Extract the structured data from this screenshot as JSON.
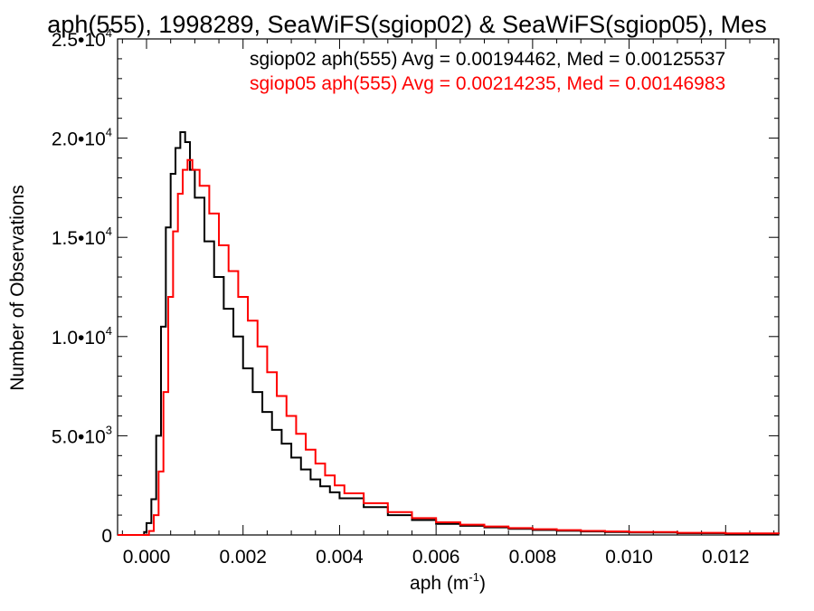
{
  "chart_data": {
    "type": "line",
    "title": "aph(555), 1998289, SeaWiFS(sgiop02) & SeaWiFS(sgiop05), Mes",
    "xlabel": "aph (m",
    "xlabel_sup": "-1",
    "xlabel_close": ")",
    "ylabel": "Number of Observations",
    "xlim": [
      -0.0006,
      0.0131
    ],
    "ylim": [
      0,
      25000
    ],
    "x_ticks": [
      0.0,
      0.002,
      0.004,
      0.006,
      0.008,
      0.01,
      0.012
    ],
    "x_tick_labels": [
      "0.000",
      "0.002",
      "0.004",
      "0.006",
      "0.008",
      "0.010",
      "0.012"
    ],
    "y_ticks": [
      0,
      5000,
      10000,
      15000,
      20000,
      25000
    ],
    "y_tick_labels": [
      {
        "base": "0",
        "exp": ""
      },
      {
        "base": "5.0•10",
        "exp": "3"
      },
      {
        "base": "1.0•10",
        "exp": "4"
      },
      {
        "base": "1.5•10",
        "exp": "4"
      },
      {
        "base": "2.0•10",
        "exp": "4"
      },
      {
        "base": "2.5•10",
        "exp": "4"
      }
    ],
    "grid": false,
    "series": [
      {
        "name": "sgiop02 aph(555) Avg = 0.00194462, Med = 0.00125537",
        "color": "#000000",
        "style": "step",
        "points": [
          [
            -0.0006,
            0
          ],
          [
            -0.0002,
            0
          ],
          [
            -5e-05,
            150
          ],
          [
            0.0,
            600
          ],
          [
            0.0001,
            1800
          ],
          [
            0.0002,
            5000
          ],
          [
            0.0003,
            10500
          ],
          [
            0.0004,
            15500
          ],
          [
            0.0005,
            18200
          ],
          [
            0.0006,
            19500
          ],
          [
            0.0007,
            20300
          ],
          [
            0.0008,
            19800
          ],
          [
            0.0009,
            18400
          ],
          [
            0.001,
            17000
          ],
          [
            0.0012,
            14800
          ],
          [
            0.0014,
            13000
          ],
          [
            0.0016,
            11400
          ],
          [
            0.0018,
            10000
          ],
          [
            0.002,
            8400
          ],
          [
            0.0022,
            7200
          ],
          [
            0.0024,
            6200
          ],
          [
            0.0026,
            5300
          ],
          [
            0.0028,
            4600
          ],
          [
            0.003,
            3900
          ],
          [
            0.0032,
            3300
          ],
          [
            0.0034,
            2800
          ],
          [
            0.0036,
            2450
          ],
          [
            0.0038,
            2150
          ],
          [
            0.004,
            1850
          ],
          [
            0.0045,
            1400
          ],
          [
            0.005,
            1000
          ],
          [
            0.0055,
            750
          ],
          [
            0.006,
            560
          ],
          [
            0.0065,
            460
          ],
          [
            0.007,
            380
          ],
          [
            0.0075,
            310
          ],
          [
            0.008,
            250
          ],
          [
            0.0085,
            210
          ],
          [
            0.009,
            175
          ],
          [
            0.0095,
            150
          ],
          [
            0.01,
            125
          ],
          [
            0.011,
            90
          ],
          [
            0.012,
            65
          ],
          [
            0.0131,
            45
          ]
        ]
      },
      {
        "name": "sgiop05 aph(555) Avg = 0.00214235, Med = 0.00146983",
        "color": "#ff0000",
        "style": "step",
        "points": [
          [
            -0.0006,
            0
          ],
          [
            0.0,
            0
          ],
          [
            5e-05,
            200
          ],
          [
            0.00015,
            1000
          ],
          [
            0.00025,
            3200
          ],
          [
            0.00035,
            7200
          ],
          [
            0.00045,
            12000
          ],
          [
            0.00055,
            15300
          ],
          [
            0.00065,
            17200
          ],
          [
            0.00075,
            18400
          ],
          [
            0.00085,
            18900
          ],
          [
            0.00095,
            18400
          ],
          [
            0.0011,
            17600
          ],
          [
            0.0013,
            16200
          ],
          [
            0.0015,
            14600
          ],
          [
            0.0017,
            13300
          ],
          [
            0.0019,
            12000
          ],
          [
            0.0021,
            10800
          ],
          [
            0.0023,
            9500
          ],
          [
            0.0025,
            8200
          ],
          [
            0.0027,
            7000
          ],
          [
            0.0029,
            6000
          ],
          [
            0.0031,
            5100
          ],
          [
            0.0033,
            4300
          ],
          [
            0.0035,
            3600
          ],
          [
            0.0037,
            3000
          ],
          [
            0.0039,
            2500
          ],
          [
            0.0041,
            2100
          ],
          [
            0.0045,
            1600
          ],
          [
            0.005,
            1150
          ],
          [
            0.0055,
            850
          ],
          [
            0.006,
            640
          ],
          [
            0.0065,
            520
          ],
          [
            0.007,
            430
          ],
          [
            0.0075,
            350
          ],
          [
            0.008,
            290
          ],
          [
            0.0085,
            245
          ],
          [
            0.009,
            205
          ],
          [
            0.0095,
            175
          ],
          [
            0.01,
            150
          ],
          [
            0.011,
            110
          ],
          [
            0.012,
            80
          ],
          [
            0.0131,
            55
          ]
        ]
      }
    ]
  }
}
